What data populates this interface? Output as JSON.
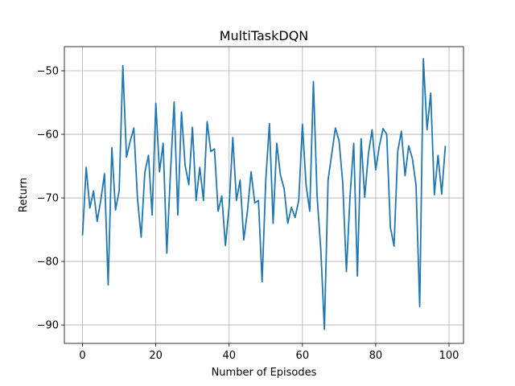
{
  "chart_data": {
    "type": "line",
    "title": "MultiTaskDQN",
    "xlabel": "Number of Episodes",
    "ylabel": "Return",
    "xlim": [
      -4.95,
      103.95
    ],
    "ylim": [
      -92.9,
      -46.2
    ],
    "xticks": [
      0,
      20,
      40,
      60,
      80,
      100
    ],
    "xtick_labels": [
      "0",
      "20",
      "40",
      "60",
      "80",
      "100"
    ],
    "yticks": [
      -90,
      -80,
      -70,
      -60,
      -50
    ],
    "ytick_labels": [
      "−90",
      "−80",
      "−70",
      "−60",
      "−50"
    ],
    "grid": true,
    "line_color": "#1f77b4",
    "series": [
      {
        "x": [
          0,
          1,
          2,
          3,
          4,
          5,
          6,
          7,
          8,
          9,
          10,
          11,
          12,
          13,
          14,
          15,
          16,
          17,
          18,
          19,
          20,
          21,
          22,
          23,
          24,
          25,
          26,
          27,
          28,
          29,
          30,
          31,
          32,
          33,
          34,
          35,
          36,
          37,
          38,
          39,
          40,
          41,
          42,
          43,
          44,
          45,
          46,
          47,
          48,
          49,
          50,
          51,
          52,
          53,
          54,
          55,
          56,
          57,
          58,
          59,
          60,
          61,
          62,
          63,
          64,
          65,
          66,
          67,
          68,
          69,
          70,
          71,
          72,
          73,
          74,
          75,
          76,
          77,
          78,
          79,
          80,
          81,
          82,
          83,
          84,
          85,
          86,
          87,
          88,
          89,
          90,
          91,
          92,
          93,
          94,
          95,
          96,
          97,
          98,
          99
        ],
        "values": [
          -75.9,
          -65.2,
          -71.6,
          -68.9,
          -73.7,
          -70.3,
          -66.2,
          -83.7,
          -62.1,
          -71.9,
          -68.9,
          -49.2,
          -63.6,
          -61.1,
          -59.0,
          -70.1,
          -76.2,
          -66.0,
          -63.3,
          -72.7,
          -55.1,
          -65.9,
          -61.4,
          -78.7,
          -66.0,
          -54.9,
          -72.7,
          -56.5,
          -64.9,
          -67.9,
          -58.9,
          -70.4,
          -65.2,
          -70.4,
          -58.0,
          -62.7,
          -62.3,
          -72.1,
          -69.7,
          -77.5,
          -71.4,
          -60.5,
          -70.4,
          -67.2,
          -76.6,
          -72.1,
          -65.9,
          -70.8,
          -70.4,
          -83.2,
          -67.2,
          -58.3,
          -74.0,
          -61.4,
          -66.4,
          -68.5,
          -74.0,
          -71.5,
          -73.1,
          -70.4,
          -58.4,
          -68.0,
          -72.1,
          -51.7,
          -69.7,
          -78.0,
          -90.7,
          -67.2,
          -63.1,
          -59.0,
          -61.0,
          -67.6,
          -81.6,
          -69.7,
          -61.4,
          -82.3,
          -60.7,
          -69.9,
          -63.1,
          -59.3,
          -65.6,
          -61.8,
          -59.1,
          -60.0,
          -74.6,
          -77.6,
          -62.7,
          -59.5,
          -66.5,
          -61.8,
          -63.8,
          -68.0,
          -87.1,
          -48.1,
          -59.3,
          -53.5,
          -69.5,
          -63.3,
          -69.4,
          -61.8
        ]
      }
    ]
  }
}
